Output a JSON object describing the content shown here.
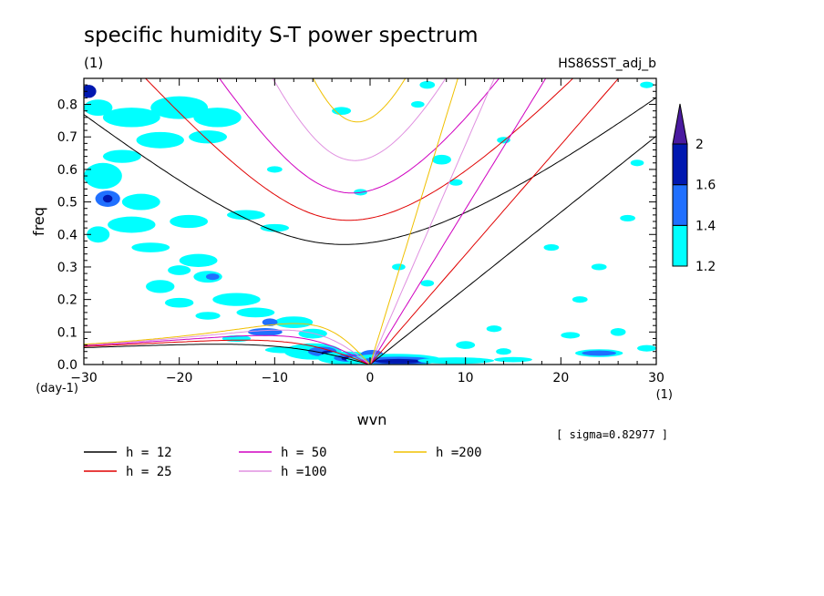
{
  "chart_data": {
    "type": "contour",
    "title": "specific humidity S-T power spectrum",
    "subtitle_left": "(1)",
    "subtitle_right": "HS86SST_adj_b",
    "xlabel": "wvn",
    "ylabel": "freq",
    "x_unit": "(1)",
    "y_unit": "(day-1)",
    "xlim": [
      -30,
      30
    ],
    "ylim": [
      0,
      0.88
    ],
    "x_ticks": [
      -30,
      -20,
      -10,
      0,
      10,
      20,
      30
    ],
    "y_ticks": [
      0.0,
      0.1,
      0.2,
      0.3,
      0.4,
      0.5,
      0.6,
      0.7,
      0.8
    ],
    "sigma_note": "[ sigma=0.82977 ]",
    "colorbar": {
      "levels": [
        1.2,
        1.4,
        1.6,
        2
      ],
      "labels": [
        "1.2",
        "1.4",
        "1.6",
        "2"
      ],
      "colors": [
        "#00ffff",
        "#2070ff",
        "#0018b0",
        "#4a1aa0"
      ]
    },
    "series": [
      {
        "name": "h = 12",
        "h": 12,
        "color": "#000000"
      },
      {
        "name": "h = 25",
        "h": 25,
        "color": "#e00000"
      },
      {
        "name": "h = 50",
        "h": 50,
        "color": "#d000c0"
      },
      {
        "name": "h =100",
        "h": 100,
        "color": "#e090e0"
      },
      {
        "name": "h =200",
        "h": 200,
        "color": "#f0c000"
      }
    ],
    "contour_blobs": [
      {
        "x": -29.5,
        "y": 0.84,
        "rx": 0.8,
        "ry": 0.02,
        "level": 3
      },
      {
        "x": -28.5,
        "y": 0.79,
        "rx": 1.5,
        "ry": 0.025,
        "level": 1
      },
      {
        "x": -25,
        "y": 0.76,
        "rx": 3,
        "ry": 0.03,
        "level": 1
      },
      {
        "x": -20,
        "y": 0.79,
        "rx": 3,
        "ry": 0.035,
        "level": 1
      },
      {
        "x": -16,
        "y": 0.76,
        "rx": 2.5,
        "ry": 0.03,
        "level": 1
      },
      {
        "x": -22,
        "y": 0.69,
        "rx": 2.5,
        "ry": 0.025,
        "level": 1
      },
      {
        "x": -17,
        "y": 0.7,
        "rx": 2,
        "ry": 0.02,
        "level": 1
      },
      {
        "x": -26,
        "y": 0.64,
        "rx": 2,
        "ry": 0.02,
        "level": 1
      },
      {
        "x": -28,
        "y": 0.58,
        "rx": 2,
        "ry": 0.04,
        "level": 1
      },
      {
        "x": -27.5,
        "y": 0.51,
        "rx": 1.3,
        "ry": 0.025,
        "level": 2
      },
      {
        "x": -27.5,
        "y": 0.51,
        "rx": 0.5,
        "ry": 0.012,
        "level": 3
      },
      {
        "x": -24,
        "y": 0.5,
        "rx": 2,
        "ry": 0.025,
        "level": 1
      },
      {
        "x": -25,
        "y": 0.43,
        "rx": 2.5,
        "ry": 0.025,
        "level": 1
      },
      {
        "x": -28.5,
        "y": 0.4,
        "rx": 1.2,
        "ry": 0.025,
        "level": 1
      },
      {
        "x": -23,
        "y": 0.36,
        "rx": 2,
        "ry": 0.015,
        "level": 1
      },
      {
        "x": -19,
        "y": 0.44,
        "rx": 2,
        "ry": 0.02,
        "level": 1
      },
      {
        "x": -13,
        "y": 0.46,
        "rx": 2,
        "ry": 0.015,
        "level": 1
      },
      {
        "x": -10,
        "y": 0.42,
        "rx": 1.5,
        "ry": 0.012,
        "level": 1
      },
      {
        "x": -22,
        "y": 0.24,
        "rx": 1.5,
        "ry": 0.02,
        "level": 1
      },
      {
        "x": -20,
        "y": 0.29,
        "rx": 1.2,
        "ry": 0.015,
        "level": 1
      },
      {
        "x": -18,
        "y": 0.32,
        "rx": 2,
        "ry": 0.02,
        "level": 1
      },
      {
        "x": -17,
        "y": 0.27,
        "rx": 1.5,
        "ry": 0.018,
        "level": 1
      },
      {
        "x": -16.5,
        "y": 0.27,
        "rx": 0.7,
        "ry": 0.01,
        "level": 2
      },
      {
        "x": -20,
        "y": 0.19,
        "rx": 1.5,
        "ry": 0.015,
        "level": 1
      },
      {
        "x": -14,
        "y": 0.2,
        "rx": 2.5,
        "ry": 0.02,
        "level": 1
      },
      {
        "x": -17,
        "y": 0.15,
        "rx": 1.3,
        "ry": 0.012,
        "level": 1
      },
      {
        "x": -12,
        "y": 0.16,
        "rx": 2,
        "ry": 0.015,
        "level": 1
      },
      {
        "x": -8,
        "y": 0.13,
        "rx": 2,
        "ry": 0.018,
        "level": 1
      },
      {
        "x": -10.5,
        "y": 0.13,
        "rx": 0.8,
        "ry": 0.012,
        "level": 2
      },
      {
        "x": -11,
        "y": 0.1,
        "rx": 1.8,
        "ry": 0.012,
        "level": 2
      },
      {
        "x": -6,
        "y": 0.095,
        "rx": 1.5,
        "ry": 0.015,
        "level": 1
      },
      {
        "x": -14,
        "y": 0.08,
        "rx": 1.5,
        "ry": 0.01,
        "level": 1
      },
      {
        "x": -9,
        "y": 0.045,
        "rx": 2,
        "ry": 0.01,
        "level": 1
      },
      {
        "x": -6,
        "y": 0.04,
        "rx": 3,
        "ry": 0.025,
        "level": 1
      },
      {
        "x": -5,
        "y": 0.04,
        "rx": 1.5,
        "ry": 0.015,
        "level": 2
      },
      {
        "x": -4.5,
        "y": 0.035,
        "rx": 0.6,
        "ry": 0.008,
        "level": 3
      },
      {
        "x": -2.5,
        "y": 0.02,
        "rx": 3,
        "ry": 0.02,
        "level": 1
      },
      {
        "x": -2,
        "y": 0.02,
        "rx": 1.8,
        "ry": 0.012,
        "level": 2
      },
      {
        "x": -2,
        "y": 0.018,
        "rx": 1,
        "ry": 0.007,
        "level": 3
      },
      {
        "x": 0.2,
        "y": 0.03,
        "rx": 1.2,
        "ry": 0.015,
        "level": 2
      },
      {
        "x": 2.5,
        "y": 0.015,
        "rx": 5,
        "ry": 0.018,
        "level": 1
      },
      {
        "x": 3,
        "y": 0.012,
        "rx": 4,
        "ry": 0.012,
        "level": 2
      },
      {
        "x": 3,
        "y": 0.01,
        "rx": 2.5,
        "ry": 0.007,
        "level": 3
      },
      {
        "x": 9,
        "y": 0.012,
        "rx": 4,
        "ry": 0.01,
        "level": 1
      },
      {
        "x": 15,
        "y": 0.015,
        "rx": 2,
        "ry": 0.008,
        "level": 1
      },
      {
        "x": 10,
        "y": 0.06,
        "rx": 1,
        "ry": 0.012,
        "level": 1
      },
      {
        "x": 14,
        "y": 0.04,
        "rx": 0.8,
        "ry": 0.01,
        "level": 1
      },
      {
        "x": 24,
        "y": 0.035,
        "rx": 2.5,
        "ry": 0.012,
        "level": 1
      },
      {
        "x": 24,
        "y": 0.035,
        "rx": 1.8,
        "ry": 0.008,
        "level": 2
      },
      {
        "x": 29,
        "y": 0.05,
        "rx": 1,
        "ry": 0.01,
        "level": 1
      },
      {
        "x": 21,
        "y": 0.09,
        "rx": 1,
        "ry": 0.01,
        "level": 1
      },
      {
        "x": 26,
        "y": 0.1,
        "rx": 0.8,
        "ry": 0.012,
        "level": 1
      },
      {
        "x": 13,
        "y": 0.11,
        "rx": 0.8,
        "ry": 0.01,
        "level": 1
      },
      {
        "x": 22,
        "y": 0.2,
        "rx": 0.8,
        "ry": 0.01,
        "level": 1
      },
      {
        "x": 24,
        "y": 0.3,
        "rx": 0.8,
        "ry": 0.01,
        "level": 1
      },
      {
        "x": 19,
        "y": 0.36,
        "rx": 0.8,
        "ry": 0.01,
        "level": 1
      },
      {
        "x": 27,
        "y": 0.45,
        "rx": 0.8,
        "ry": 0.01,
        "level": 1
      },
      {
        "x": 6,
        "y": 0.25,
        "rx": 0.7,
        "ry": 0.01,
        "level": 1
      },
      {
        "x": 3,
        "y": 0.3,
        "rx": 0.7,
        "ry": 0.01,
        "level": 1
      },
      {
        "x": 7.5,
        "y": 0.63,
        "rx": 1,
        "ry": 0.015,
        "level": 1
      },
      {
        "x": 9,
        "y": 0.56,
        "rx": 0.7,
        "ry": 0.01,
        "level": 1
      },
      {
        "x": 5,
        "y": 0.8,
        "rx": 0.7,
        "ry": 0.01,
        "level": 1
      },
      {
        "x": 6,
        "y": 0.86,
        "rx": 0.8,
        "ry": 0.012,
        "level": 1
      },
      {
        "x": -3,
        "y": 0.78,
        "rx": 1,
        "ry": 0.012,
        "level": 1
      },
      {
        "x": -10,
        "y": 0.6,
        "rx": 0.8,
        "ry": 0.01,
        "level": 1
      },
      {
        "x": 28,
        "y": 0.62,
        "rx": 0.7,
        "ry": 0.01,
        "level": 1
      },
      {
        "x": 29,
        "y": 0.86,
        "rx": 0.7,
        "ry": 0.01,
        "level": 1
      },
      {
        "x": -1,
        "y": 0.53,
        "rx": 0.7,
        "ry": 0.01,
        "level": 1
      },
      {
        "x": 14,
        "y": 0.69,
        "rx": 0.7,
        "ry": 0.01,
        "level": 1
      }
    ]
  }
}
